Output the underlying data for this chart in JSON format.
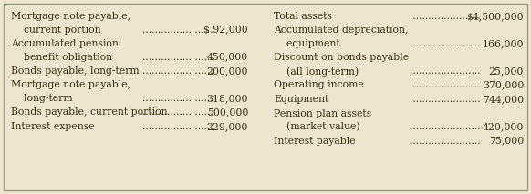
{
  "bg_color": "#ede5d0",
  "border_color": "#999980",
  "left_col": [
    {
      "line1": "Mortgage note payable,",
      "line2": "    current portion",
      "value": "$ 92,000"
    },
    {
      "line1": "Accumulated pension",
      "line2": "    benefit obligation",
      "value": "450,000"
    },
    {
      "line1": "Bonds payable, long-term",
      "value": "200,000"
    },
    {
      "line1": "Mortgage note payable,",
      "line2": "    long-term",
      "value": "318,000"
    },
    {
      "line1": "Bonds payable, current portion",
      "value": "500,000"
    },
    {
      "line1": "Interest expense",
      "value": "229,000"
    }
  ],
  "right_col": [
    {
      "line1": "Total assets",
      "value": "$4,500,000"
    },
    {
      "line1": "Accumulated depreciation,",
      "line2": "    equipment",
      "value": "166,000"
    },
    {
      "line1": "Discount on bonds payable",
      "line2": "    (all long-term)",
      "value": "25,000"
    },
    {
      "line1": "Operating income",
      "value": "370,000"
    },
    {
      "line1": "Equipment",
      "value": "744,000"
    },
    {
      "line1": "Pension plan assets",
      "line2": "    (market value)",
      "value": "420,000"
    },
    {
      "line1": "Interest payable",
      "value": "75,000"
    }
  ],
  "font_color": "#3a3010",
  "font_size": 7.8
}
